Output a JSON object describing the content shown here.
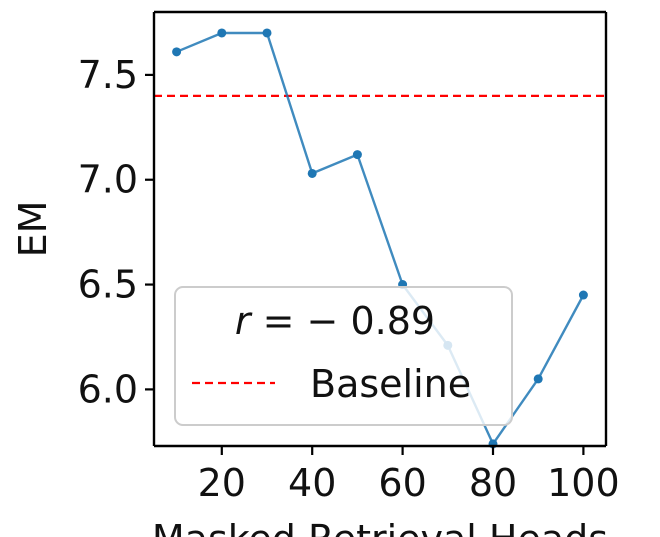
{
  "chart_data": {
    "type": "line",
    "title": "",
    "xlabel": "Masked Retrieval Heads",
    "ylabel": "EM",
    "xlim": [
      5,
      105
    ],
    "ylim": [
      5.73,
      7.8
    ],
    "xticks": [
      20,
      40,
      60,
      80,
      100
    ],
    "xtick_labels": [
      "20",
      "40",
      "60",
      "80",
      "100"
    ],
    "yticks": [
      6.0,
      6.5,
      7.0,
      7.5
    ],
    "ytick_labels": [
      "6.0",
      "6.5",
      "7.0",
      "7.5"
    ],
    "grid": false,
    "series": [
      {
        "name": "EM",
        "color": "#1f77b4",
        "x": [
          10,
          20,
          30,
          40,
          50,
          60,
          70,
          80,
          90,
          100
        ],
        "y": [
          7.61,
          7.7,
          7.7,
          7.03,
          7.12,
          6.5,
          6.21,
          5.74,
          6.05,
          6.45
        ]
      }
    ],
    "baseline": {
      "name": "Baseline",
      "value": 7.4,
      "color": "#ff0000"
    },
    "legend": {
      "position": "lower-left",
      "annotation": "r = −0.89",
      "annotation_var": "r",
      "annotation_rest": "= − 0.89",
      "entries": [
        "Baseline"
      ]
    }
  }
}
